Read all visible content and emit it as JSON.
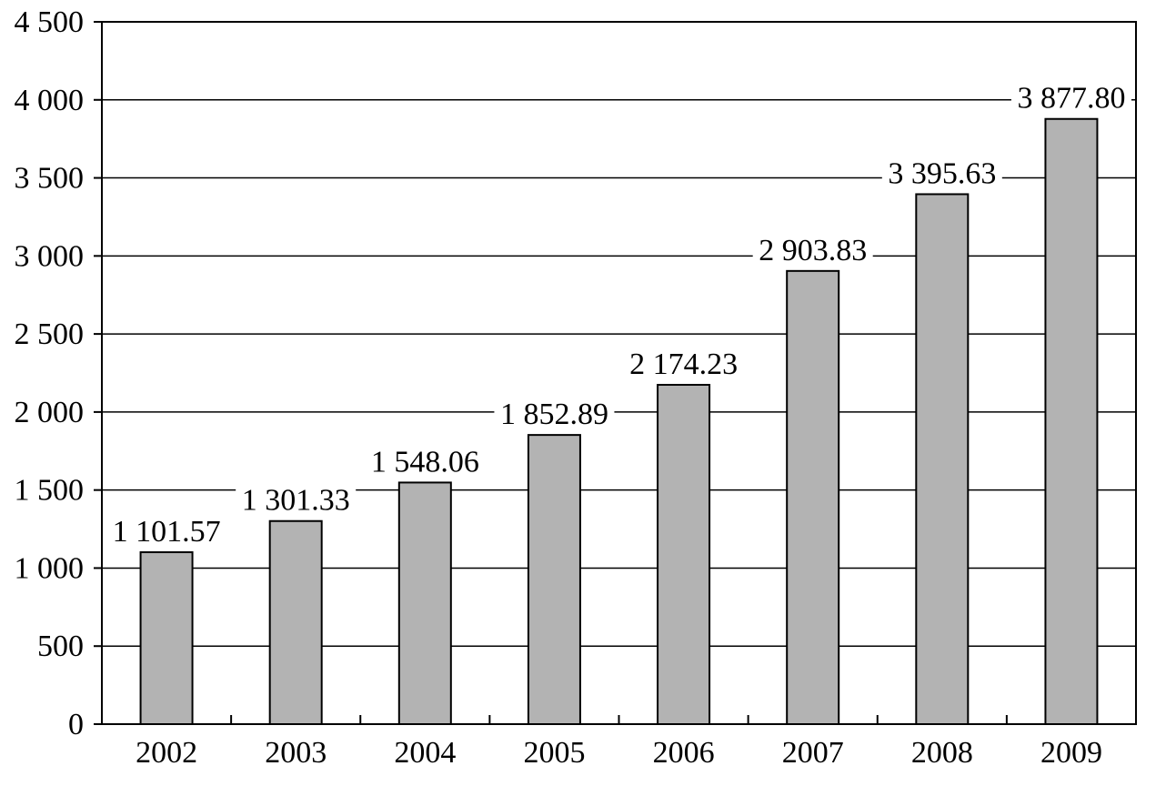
{
  "chart_data": {
    "type": "bar",
    "categories": [
      "2002",
      "2003",
      "2004",
      "2005",
      "2006",
      "2007",
      "2008",
      "2009"
    ],
    "values": [
      1101.57,
      1301.33,
      1548.06,
      1852.89,
      2174.23,
      2903.83,
      3395.63,
      3877.8
    ],
    "value_labels": [
      "1 101.57",
      "1 301.33",
      "1 548.06",
      "1 852.89",
      "2 174.23",
      "2 903.83",
      "3 395.63",
      "3 877.80"
    ],
    "title": "",
    "xlabel": "",
    "ylabel": "",
    "ylim": [
      0,
      4500
    ],
    "yticks": [
      0,
      500,
      1000,
      1500,
      2000,
      2500,
      3000,
      3500,
      4000,
      4500
    ],
    "ytick_labels": [
      "0",
      "500",
      "1 000",
      "1 500",
      "2 000",
      "2 500",
      "3 000",
      "3 500",
      "4 000",
      "4 500"
    ],
    "grid": true,
    "colors": {
      "bar_fill": "#b3b3b3",
      "bar_stroke": "#000000",
      "grid": "#000000"
    }
  }
}
